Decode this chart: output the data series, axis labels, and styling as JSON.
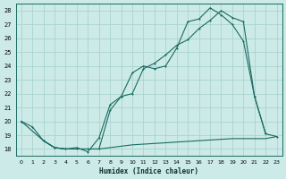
{
  "xlabel": "Humidex (Indice chaleur)",
  "bg_color": "#cceae8",
  "grid_color": "#aad4d0",
  "line_color": "#1a6b60",
  "xlim": [
    -0.5,
    23.5
  ],
  "ylim": [
    17.5,
    28.5
  ],
  "xticks": [
    0,
    1,
    2,
    3,
    4,
    5,
    6,
    7,
    8,
    9,
    10,
    11,
    12,
    13,
    14,
    15,
    16,
    17,
    18,
    19,
    20,
    21,
    22,
    23
  ],
  "yticks": [
    18,
    19,
    20,
    21,
    22,
    23,
    24,
    25,
    26,
    27,
    28
  ],
  "series1_x": [
    0,
    1,
    2,
    3,
    4,
    5,
    6,
    7,
    8,
    9,
    10,
    11,
    12,
    13,
    14,
    15,
    16,
    17,
    18,
    19,
    20,
    21,
    22,
    23
  ],
  "series1_y": [
    20.0,
    19.6,
    18.6,
    18.1,
    18.0,
    18.1,
    17.8,
    18.8,
    21.2,
    21.8,
    23.5,
    24.0,
    23.8,
    24.0,
    25.3,
    27.2,
    27.4,
    28.2,
    27.7,
    27.0,
    25.8,
    21.8,
    19.1,
    18.9
  ],
  "series2_x": [
    0,
    2,
    3,
    4,
    5,
    6,
    7,
    8,
    9,
    10,
    11,
    12,
    13,
    14,
    15,
    16,
    17,
    18,
    19,
    20,
    21,
    22
  ],
  "series2_y": [
    20.0,
    18.6,
    18.1,
    18.0,
    18.0,
    18.0,
    18.0,
    20.8,
    21.8,
    22.0,
    23.8,
    24.2,
    24.8,
    25.5,
    25.9,
    26.7,
    27.3,
    28.0,
    27.5,
    27.2,
    21.8,
    19.1
  ],
  "series3_x": [
    2,
    3,
    4,
    5,
    6,
    7,
    8,
    9,
    10,
    11,
    12,
    13,
    14,
    15,
    16,
    17,
    18,
    19,
    20,
    21,
    22,
    23
  ],
  "series3_y": [
    18.6,
    18.1,
    18.0,
    18.0,
    18.0,
    18.0,
    18.1,
    18.2,
    18.3,
    18.35,
    18.4,
    18.45,
    18.5,
    18.55,
    18.6,
    18.65,
    18.7,
    18.75,
    18.75,
    18.75,
    18.75,
    18.9
  ]
}
